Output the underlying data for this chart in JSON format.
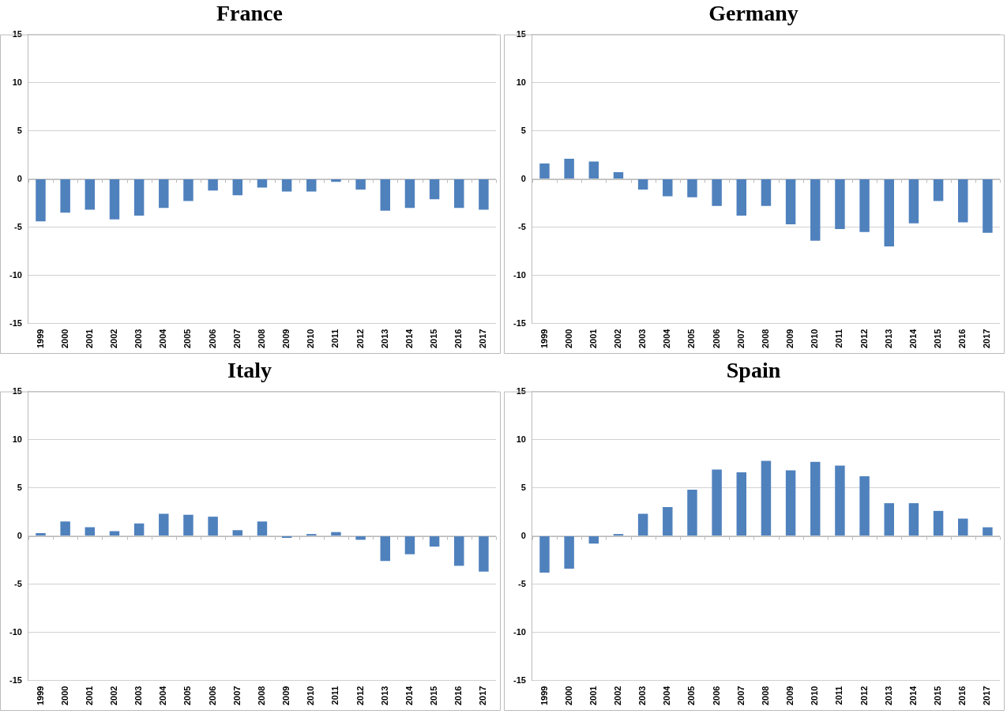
{
  "chart_data": [
    {
      "type": "bar",
      "title": "France",
      "categories": [
        "1999",
        "2000",
        "2001",
        "2002",
        "2003",
        "2004",
        "2005",
        "2006",
        "2007",
        "2008",
        "2009",
        "2010",
        "2011",
        "2012",
        "2013",
        "2014",
        "2015",
        "2016",
        "2017"
      ],
      "series": [
        {
          "color": "#4f81bd",
          "values": [
            -4.4,
            -3.5,
            -3.2,
            -4.2,
            -3.8,
            -3.0,
            -2.3,
            -1.2,
            -1.7,
            -0.9,
            -1.3,
            -1.3,
            -0.3,
            -1.1,
            -3.3,
            -3.0,
            -2.1,
            -3.0,
            -3.2
          ]
        }
      ],
      "ylim": [
        -15,
        15
      ],
      "yticks": [
        -15,
        -10,
        -5,
        0,
        5,
        10,
        15
      ],
      "grid": "y"
    },
    {
      "type": "bar",
      "title": "Germany",
      "categories": [
        "1999",
        "2000",
        "2001",
        "2002",
        "2003",
        "2004",
        "2005",
        "2006",
        "2007",
        "2008",
        "2009",
        "2010",
        "2011",
        "2012",
        "2013",
        "2014",
        "2015",
        "2016",
        "2017"
      ],
      "series": [
        {
          "color": "#4f81bd",
          "values": [
            1.6,
            2.1,
            1.8,
            0.7,
            -1.1,
            -1.8,
            -1.9,
            -2.8,
            -3.8,
            -2.8,
            -4.7,
            -6.4,
            -5.2,
            -5.5,
            -7.0,
            -4.6,
            -2.3,
            -4.5,
            -5.6
          ]
        }
      ],
      "ylim": [
        -15,
        15
      ],
      "yticks": [
        -15,
        -10,
        -5,
        0,
        5,
        10,
        15
      ],
      "grid": "y"
    },
    {
      "type": "bar",
      "title": "Italy",
      "categories": [
        "1999",
        "2000",
        "2001",
        "2002",
        "2003",
        "2004",
        "2005",
        "2006",
        "2007",
        "2008",
        "2009",
        "2010",
        "2011",
        "2012",
        "2013",
        "2014",
        "2015",
        "2016",
        "2017"
      ],
      "series": [
        {
          "color": "#4f81bd",
          "values": [
            0.3,
            1.5,
            0.9,
            0.5,
            1.3,
            2.3,
            2.2,
            2.0,
            0.6,
            1.5,
            -0.2,
            0.2,
            0.4,
            -0.4,
            -2.6,
            -1.9,
            -1.1,
            -3.1,
            -3.7
          ]
        }
      ],
      "ylim": [
        -15,
        15
      ],
      "yticks": [
        -15,
        -10,
        -5,
        0,
        5,
        10,
        15
      ],
      "grid": "y"
    },
    {
      "type": "bar",
      "title": "Spain",
      "categories": [
        "1999",
        "2000",
        "2001",
        "2002",
        "2003",
        "2004",
        "2005",
        "2006",
        "2007",
        "2008",
        "2009",
        "2010",
        "2011",
        "2012",
        "2013",
        "2014",
        "2015",
        "2016",
        "2017"
      ],
      "series": [
        {
          "color": "#4f81bd",
          "values": [
            -3.8,
            -3.4,
            -0.8,
            0.2,
            2.3,
            3.0,
            4.8,
            6.9,
            6.6,
            7.8,
            6.8,
            7.7,
            7.3,
            6.2,
            3.4,
            3.4,
            2.6,
            1.8,
            0.9
          ]
        }
      ],
      "ylim": [
        -15,
        15
      ],
      "yticks": [
        -15,
        -10,
        -5,
        0,
        5,
        10,
        15
      ],
      "grid": "y"
    }
  ]
}
